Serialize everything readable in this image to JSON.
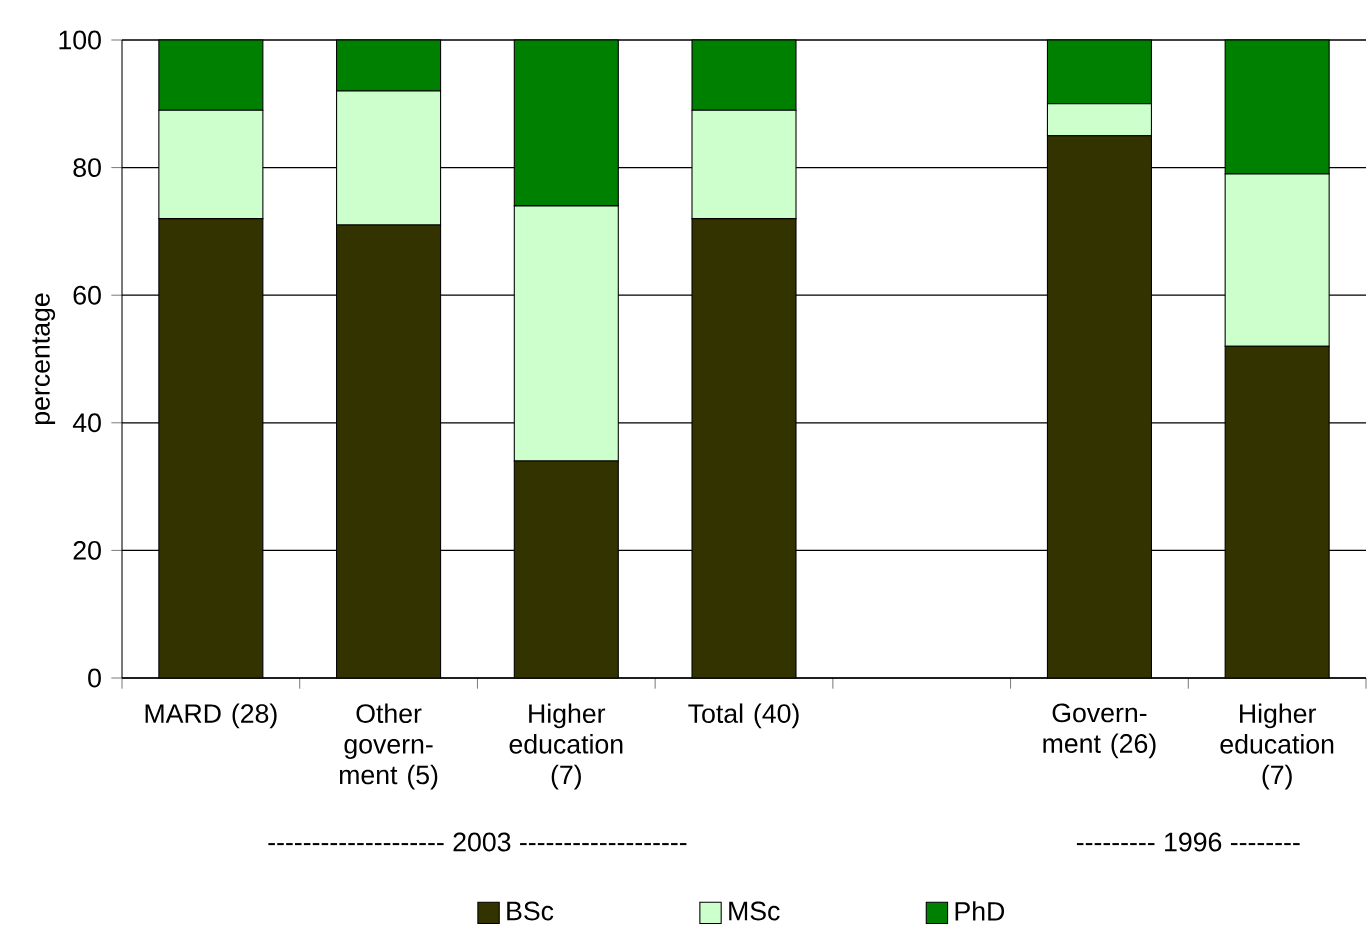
{
  "chart_data": {
    "type": "bar",
    "stacked": true,
    "ylabel": "percentage",
    "categories": [
      "MARD (28)",
      "Other govern-ment (5)",
      "Higher education (7)",
      "Total (40)",
      null,
      "Govern-ment (26)",
      "Higher education (7)"
    ],
    "series": [
      {
        "name": "BSc",
        "color": "#333300",
        "values": [
          72,
          71,
          34,
          72,
          null,
          85,
          52
        ]
      },
      {
        "name": "MSc",
        "color": "#ccffcc",
        "values": [
          17,
          21,
          40,
          17,
          null,
          5,
          27
        ]
      },
      {
        "name": "PhD",
        "color": "#008000",
        "values": [
          11,
          8,
          26,
          11,
          null,
          10,
          21
        ]
      }
    ],
    "ylim": [
      0,
      100
    ],
    "yticks": [
      0,
      20,
      40,
      60,
      80,
      100
    ],
    "grid": "y",
    "legend": "bottom",
    "annotations": [
      "-------------------- 2003 -------------------",
      "--------- 1996 --------"
    ]
  }
}
